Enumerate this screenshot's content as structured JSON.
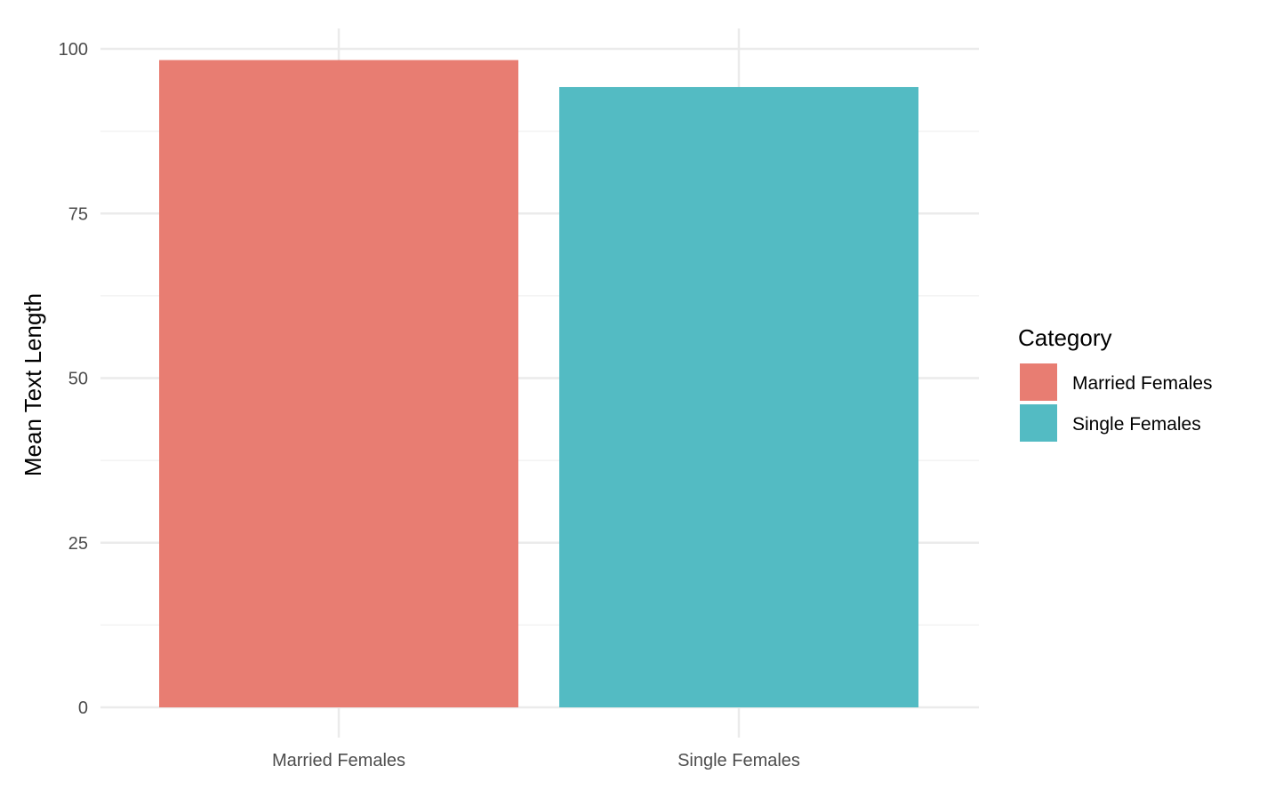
{
  "chart_data": {
    "type": "bar",
    "categories": [
      "Married Females",
      "Single Females"
    ],
    "values": [
      98.3,
      94.2
    ],
    "title": "",
    "xlabel": "",
    "ylabel": "Mean Text Length",
    "ylim": [
      0,
      100
    ],
    "yticks": [
      0,
      25,
      50,
      75,
      100
    ],
    "grid": true,
    "legend": {
      "title": "Category",
      "placement": "right",
      "entries": [
        "Married Females",
        "Single Females"
      ]
    },
    "colors": [
      "#E87D72",
      "#53BBC3"
    ]
  },
  "theme": {
    "grid_major": "#ebebeb",
    "grid_minor": "#f3f3f3"
  }
}
